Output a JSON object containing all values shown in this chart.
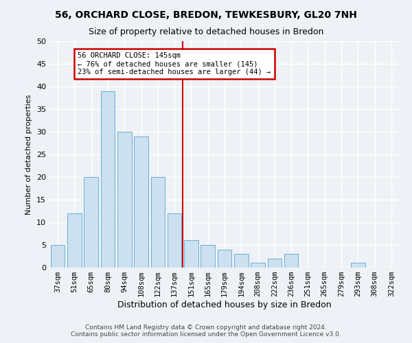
{
  "title1": "56, ORCHARD CLOSE, BREDON, TEWKESBURY, GL20 7NH",
  "title2": "Size of property relative to detached houses in Bredon",
  "xlabel": "Distribution of detached houses by size in Bredon",
  "ylabel": "Number of detached properties",
  "bar_color": "#cce0f0",
  "bar_edge_color": "#6aafd6",
  "categories": [
    "37sqm",
    "51sqm",
    "65sqm",
    "80sqm",
    "94sqm",
    "108sqm",
    "122sqm",
    "137sqm",
    "151sqm",
    "165sqm",
    "179sqm",
    "194sqm",
    "208sqm",
    "222sqm",
    "236sqm",
    "251sqm",
    "265sqm",
    "279sqm",
    "293sqm",
    "308sqm",
    "322sqm"
  ],
  "values": [
    5,
    12,
    20,
    39,
    30,
    29,
    20,
    12,
    6,
    5,
    4,
    3,
    1,
    2,
    3,
    0,
    0,
    0,
    1,
    0,
    0
  ],
  "ylim": [
    0,
    50
  ],
  "yticks": [
    0,
    5,
    10,
    15,
    20,
    25,
    30,
    35,
    40,
    45,
    50
  ],
  "ref_line_index": 7,
  "annotation_text": "56 ORCHARD CLOSE: 145sqm\n← 76% of detached houses are smaller (145)\n23% of semi-detached houses are larger (44) →",
  "annotation_box_color": "#ffffff",
  "annotation_border_color": "#cc0000",
  "ref_line_color": "#cc0000",
  "footer1": "Contains HM Land Registry data © Crown copyright and database right 2024.",
  "footer2": "Contains public sector information licensed under the Open Government Licence v3.0.",
  "background_color": "#eef2f7",
  "grid_color": "#ffffff",
  "title1_fontsize": 10,
  "title2_fontsize": 9,
  "ylabel_fontsize": 8,
  "xlabel_fontsize": 9
}
